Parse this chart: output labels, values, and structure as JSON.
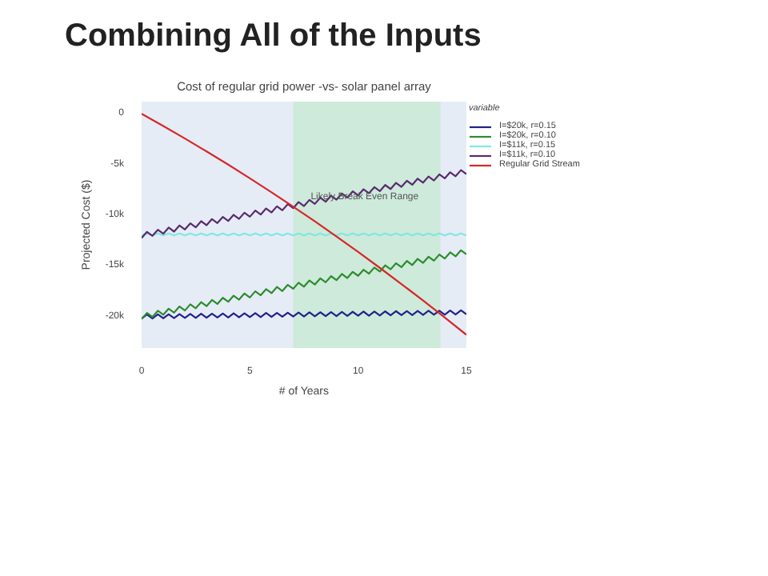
{
  "chart_data": {
    "type": "line",
    "title": "Combining All of the Inputs",
    "subtitle": "Cost of regular grid power -vs- solar panel array",
    "xlabel": "# of Years",
    "ylabel": "Projected Cost ($)",
    "legend_title": "variable",
    "legend": "right",
    "grid": false,
    "x": [
      0,
      0.25,
      0.5,
      0.75,
      1,
      1.25,
      1.5,
      1.75,
      2,
      2.25,
      2.5,
      2.75,
      3,
      3.25,
      3.5,
      3.75,
      4,
      4.25,
      4.5,
      4.75,
      5,
      5.25,
      5.5,
      5.75,
      6,
      6.25,
      6.5,
      6.75,
      7,
      7.25,
      7.5,
      7.75,
      8,
      8.25,
      8.5,
      8.75,
      9,
      9.25,
      9.5,
      9.75,
      10,
      10.25,
      10.5,
      10.75,
      11,
      11.25,
      11.5,
      11.75,
      12,
      12.25,
      12.5,
      12.75,
      13,
      13.25,
      13.5,
      13.75,
      14,
      14.25,
      14.5,
      14.75,
      15
    ],
    "xlim": [
      0,
      15
    ],
    "xticks": [
      0,
      5,
      10,
      15
    ],
    "ylim": [
      -23100,
      1200
    ],
    "yticks": [
      {
        "value": 0,
        "label": "0"
      },
      {
        "value": -5000,
        "label": "-5k"
      },
      {
        "value": -10000,
        "label": "-10k"
      },
      {
        "value": -15000,
        "label": "-15k"
      },
      {
        "value": -20000,
        "label": "-20k"
      }
    ],
    "series": [
      {
        "name": "I=$20k, r=0.15",
        "color": "#22228a",
        "values": [
          -20200,
          -19790,
          -20190,
          -19780,
          -20170,
          -19770,
          -20160,
          -19750,
          -20140,
          -19740,
          -20130,
          -19720,
          -20120,
          -19710,
          -20100,
          -19700,
          -20090,
          -19680,
          -20070,
          -19670,
          -20060,
          -19650,
          -20050,
          -19640,
          -20030,
          -19630,
          -20020,
          -19610,
          -20000,
          -19600,
          -19990,
          -19580,
          -19980,
          -19570,
          -19960,
          -19560,
          -19950,
          -19540,
          -19930,
          -19530,
          -19920,
          -19510,
          -19910,
          -19500,
          -19890,
          -19490,
          -19880,
          -19470,
          -19860,
          -19460,
          -19850,
          -19440,
          -19840,
          -19430,
          -19820,
          -19420,
          -19810,
          -19400,
          -19790,
          -19390,
          -19780
        ]
      },
      {
        "name": "I=$20k, r=0.10",
        "color": "#2e8b2e",
        "values": [
          -20250,
          -19640,
          -20040,
          -19430,
          -19820,
          -19220,
          -19610,
          -19000,
          -19400,
          -18790,
          -19180,
          -18580,
          -18970,
          -18360,
          -18760,
          -18150,
          -18540,
          -17940,
          -18330,
          -17720,
          -18120,
          -17510,
          -17900,
          -17300,
          -17690,
          -17080,
          -17480,
          -16870,
          -17260,
          -16660,
          -17050,
          -16440,
          -16840,
          -16230,
          -16620,
          -16020,
          -16410,
          -15800,
          -16200,
          -15590,
          -15980,
          -15380,
          -15770,
          -15160,
          -15560,
          -14950,
          -15340,
          -14740,
          -15130,
          -14520,
          -14920,
          -14310,
          -14700,
          -14100,
          -14490,
          -13880,
          -14280,
          -13670,
          -14060,
          -13460,
          -13850
        ]
      },
      {
        "name": "I=$11k, r=0.15",
        "color": "#7fe8e0",
        "values": [
          -12000,
          -11800,
          -12000,
          -11800,
          -12000,
          -11800,
          -12000,
          -11800,
          -12000,
          -11800,
          -12000,
          -11800,
          -12000,
          -11800,
          -12000,
          -11800,
          -12000,
          -11800,
          -12000,
          -11800,
          -12000,
          -11800,
          -12000,
          -11800,
          -12000,
          -11800,
          -12000,
          -11800,
          -12000,
          -11800,
          -12000,
          -11800,
          -12000,
          -11800,
          -12000,
          -11800,
          -12000,
          -11800,
          -12000,
          -11800,
          -12000,
          -11800,
          -12000,
          -11800,
          -12000,
          -11800,
          -12000,
          -11800,
          -12000,
          -11800,
          -12000,
          -11800,
          -12000,
          -11800,
          -12000,
          -11800,
          -12000,
          -11800,
          -12000,
          -11800,
          -12000
        ]
      },
      {
        "name": "I=$11k, r=0.10",
        "color": "#5b2a6e",
        "values": [
          -12250,
          -11645,
          -12040,
          -11435,
          -11830,
          -11225,
          -11620,
          -11015,
          -11410,
          -10805,
          -11200,
          -10595,
          -10990,
          -10385,
          -10780,
          -10175,
          -10570,
          -9965,
          -10360,
          -9755,
          -10150,
          -9545,
          -9940,
          -9335,
          -9730,
          -9125,
          -9520,
          -8915,
          -9310,
          -8705,
          -9100,
          -8495,
          -8890,
          -8285,
          -8680,
          -8075,
          -8470,
          -7865,
          -8260,
          -7655,
          -8050,
          -7445,
          -7840,
          -7235,
          -7630,
          -7025,
          -7420,
          -6815,
          -7210,
          -6605,
          -7000,
          -6395,
          -6790,
          -6185,
          -6580,
          -5975,
          -6370,
          -5765,
          -6160,
          -5555,
          -5950
        ]
      },
      {
        "name": "Regular Grid Stream",
        "color": "#d62728",
        "x": [
          0,
          1,
          2,
          3,
          4,
          5,
          6,
          7,
          8,
          9,
          10,
          11,
          12,
          13,
          14,
          15
        ],
        "values": [
          0,
          -1200,
          -2440,
          -3710,
          -5010,
          -6360,
          -7740,
          -9160,
          -10610,
          -12100,
          -13630,
          -15190,
          -16790,
          -18420,
          -20090,
          -21800
        ]
      }
    ],
    "bands": [
      {
        "axis": "x",
        "from": 7,
        "to": 13.8,
        "color": "#cdeadb"
      }
    ],
    "annotations": [
      {
        "text": "Likely Break Even Range",
        "x": 10.3,
        "y": -8300
      }
    ]
  }
}
